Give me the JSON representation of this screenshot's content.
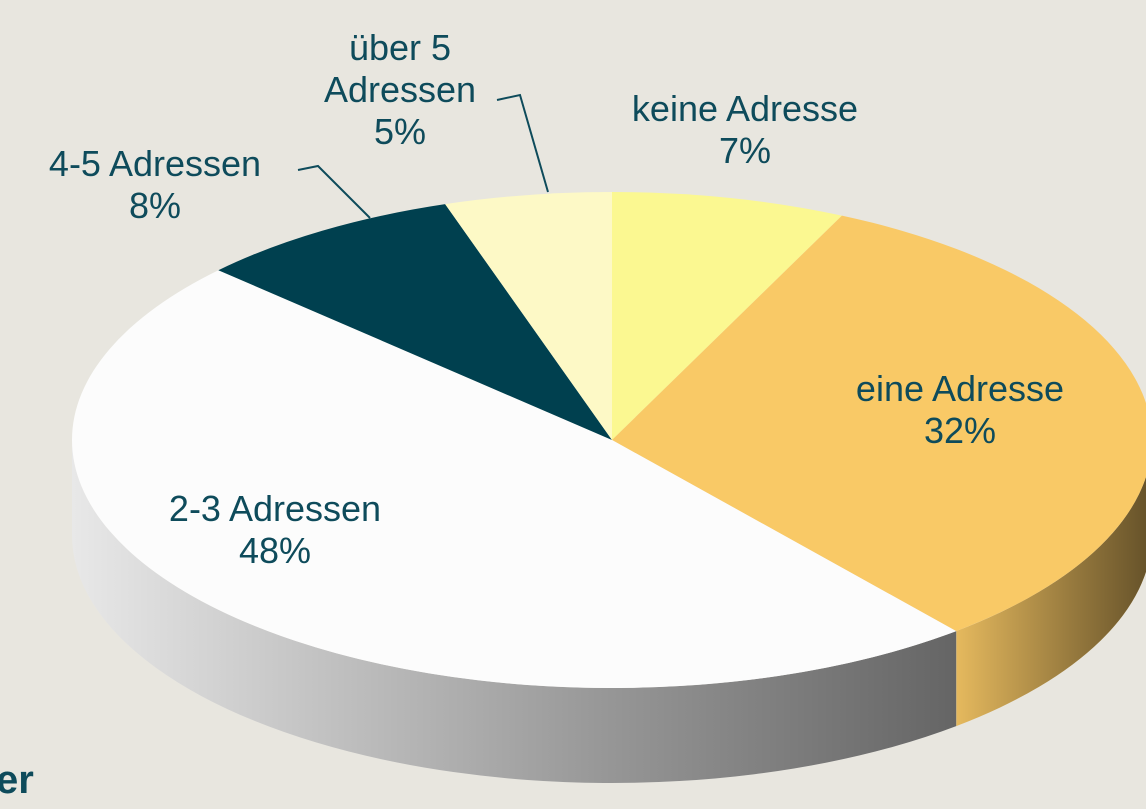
{
  "chart_data": {
    "type": "pie",
    "categories": [
      "keine Adresse",
      "eine Adresse",
      "2-3 Adressen",
      "4-5 Adressen",
      "über 5 Adressen"
    ],
    "values": [
      7,
      32,
      48,
      8,
      5
    ],
    "value_labels": [
      "7%",
      "32%",
      "48%",
      "8%",
      "5%"
    ],
    "colors": [
      "#fbf891",
      "#f9c966",
      "#fcfcfc",
      "#00404f",
      "#fdf9c6"
    ]
  },
  "footer": {
    "text": "er"
  }
}
